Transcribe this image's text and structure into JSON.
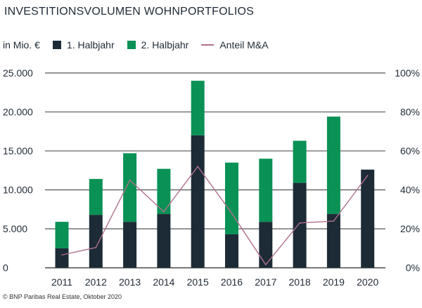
{
  "title": "INVESTITIONSVOLUMEN WOHNPORTFOLIOS",
  "source": "© BNP Paribas Real Estate, Oktober 2020",
  "chart_data": {
    "type": "bar",
    "stacked": true,
    "title": "INVESTITIONSVOLUMEN WOHNPORTFOLIOS",
    "ylabel": "in Mio. €",
    "categories": [
      "2011",
      "2012",
      "2013",
      "2014",
      "2015",
      "2016",
      "2017",
      "2018",
      "2019",
      "2020"
    ],
    "series": [
      {
        "name": "1. Halbjahr",
        "type": "bar",
        "color": "#1c2b36",
        "values": [
          2500,
          6800,
          5900,
          6900,
          17000,
          4300,
          5900,
          10900,
          6900,
          12600
        ]
      },
      {
        "name": "2. Halbjahr",
        "type": "bar",
        "color": "#0a9156",
        "values": [
          3400,
          4600,
          8800,
          5800,
          7000,
          9200,
          8100,
          5400,
          12500,
          0
        ]
      },
      {
        "name": "Anteil M&A",
        "type": "line",
        "axis": "right",
        "color": "#b0708e",
        "values": [
          6.6,
          10.4,
          45,
          28.8,
          52,
          28,
          1.6,
          23,
          24,
          47.4
        ]
      }
    ],
    "ylim": [
      0,
      25000
    ],
    "y_ticks": [
      "0",
      "5.000",
      "10.000",
      "15.000",
      "20.000",
      "25.000"
    ],
    "y2lim": [
      0,
      100
    ],
    "y2_ticks": [
      "0%",
      "20%",
      "40%",
      "60%",
      "80%",
      "100%"
    ],
    "grid": true,
    "legend": "top"
  }
}
